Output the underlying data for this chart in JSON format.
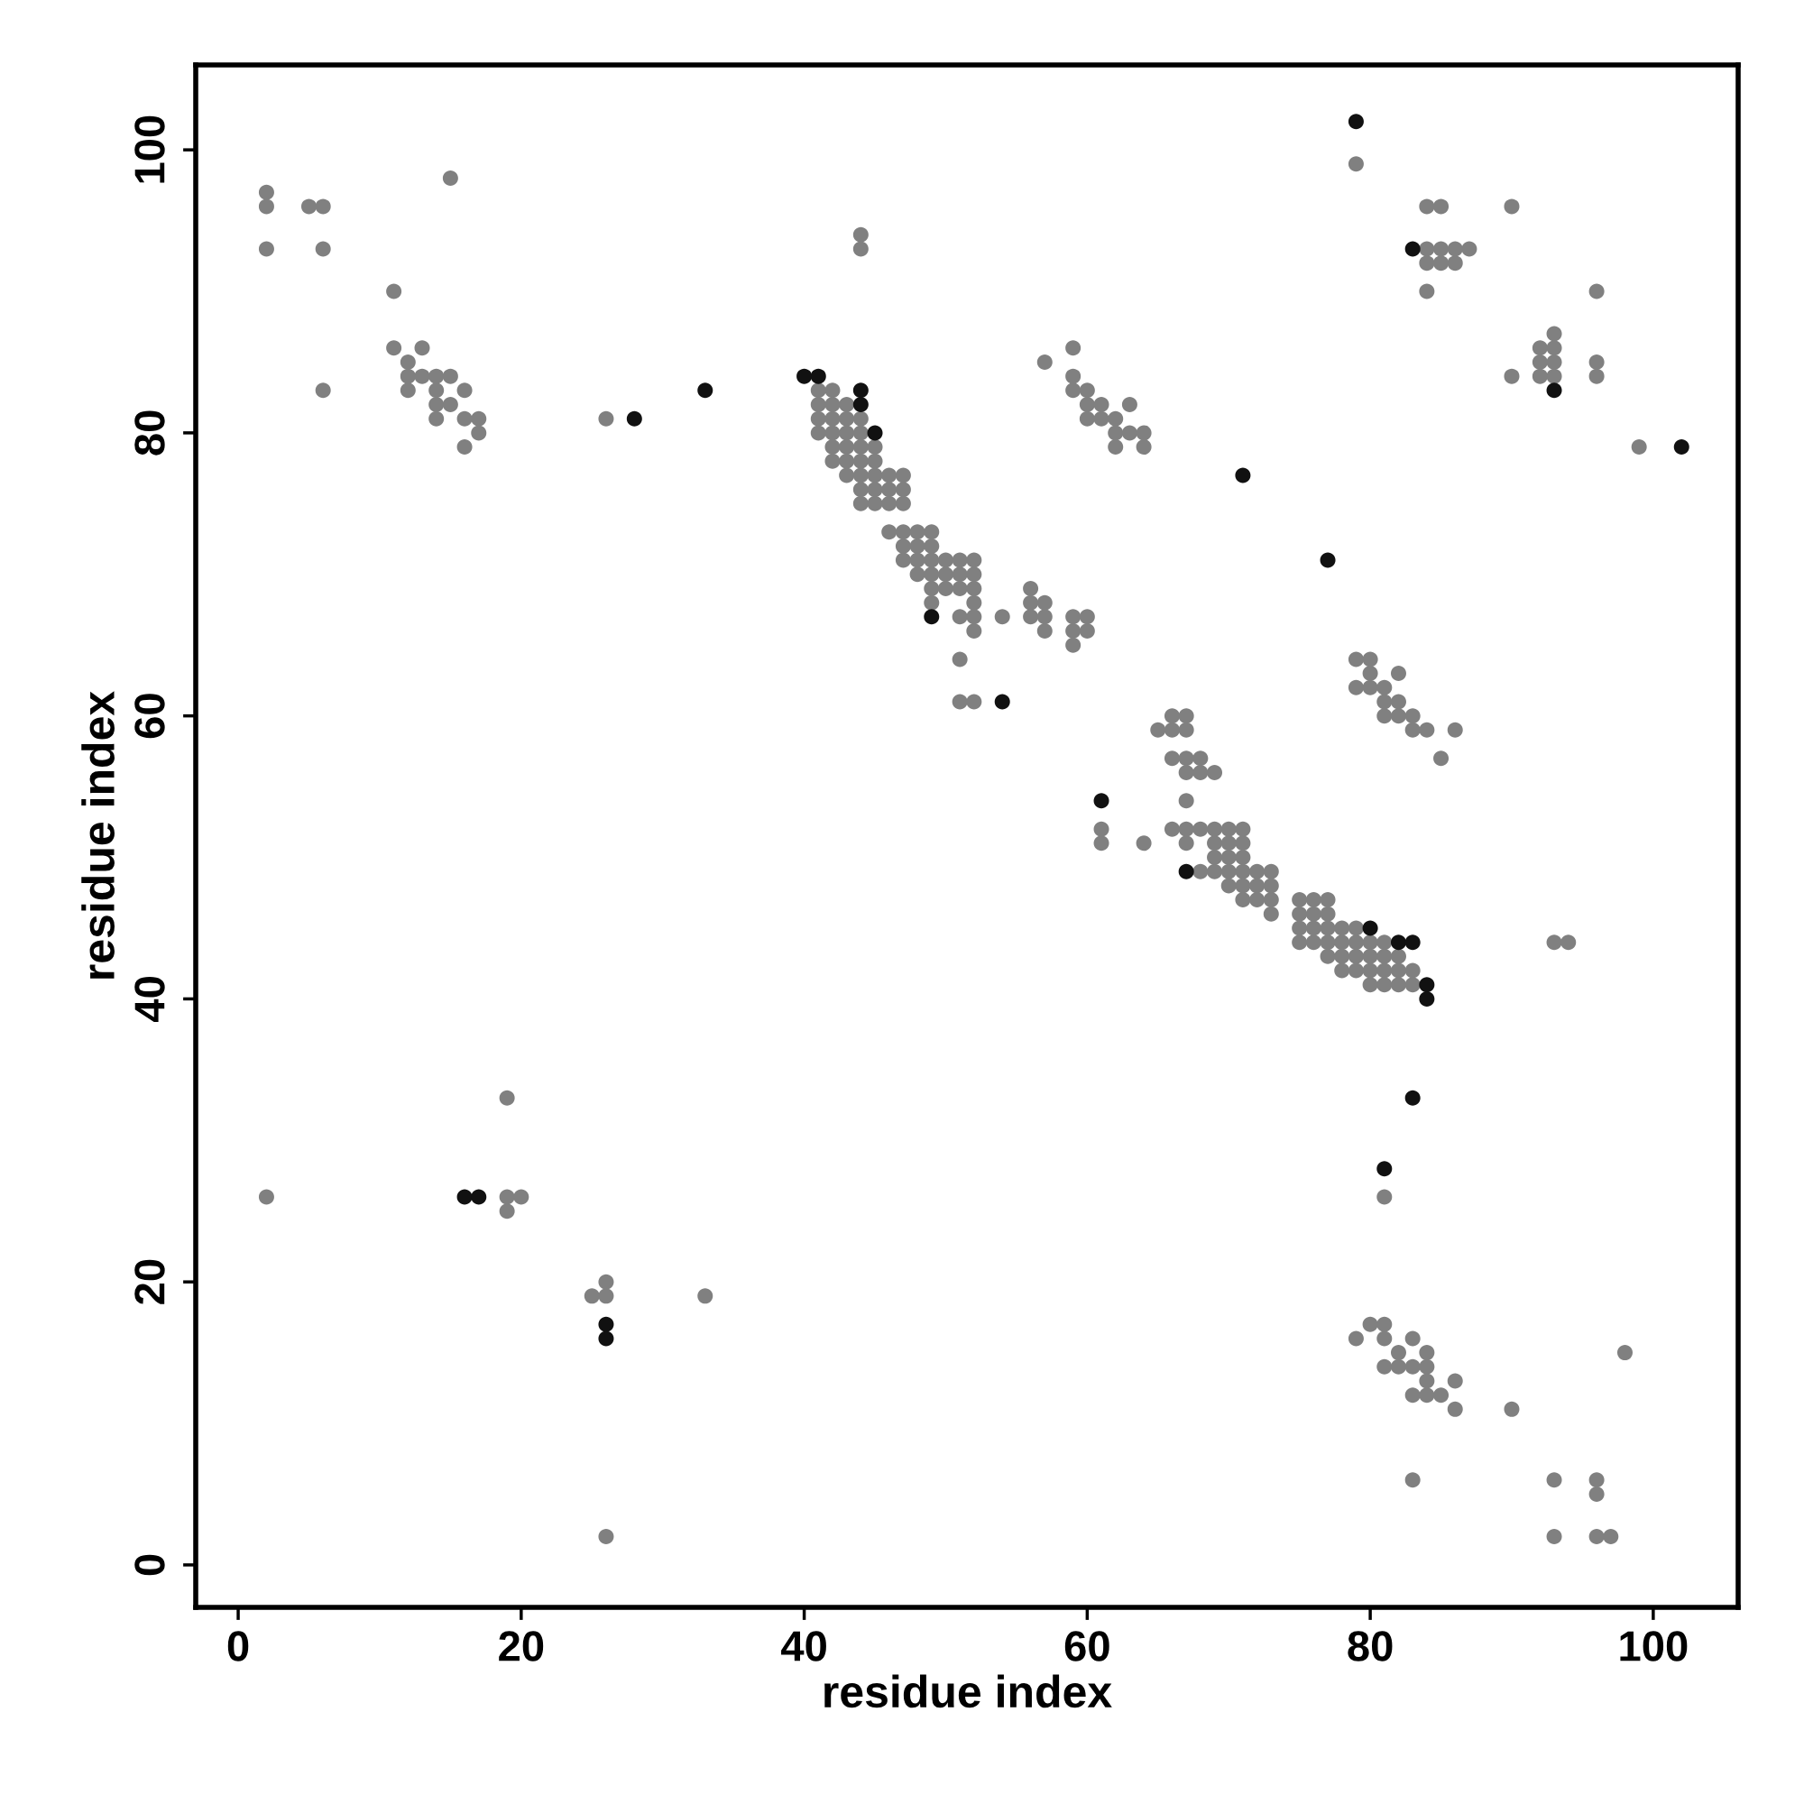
{
  "chart_data": {
    "type": "scatter",
    "xlabel": "residue index",
    "ylabel": "residue index",
    "xlim": [
      -3,
      106
    ],
    "ylim": [
      -3,
      106
    ],
    "xticks": [
      0,
      20,
      40,
      60,
      80,
      100
    ],
    "yticks": [
      0,
      20,
      40,
      60,
      80,
      100
    ],
    "grid": false,
    "marker": "circle",
    "series": [
      {
        "color": "#808080",
        "x": [
          2,
          2,
          5,
          6,
          2,
          6,
          15,
          11,
          6,
          11,
          13,
          12,
          12,
          13,
          14,
          15,
          12,
          14,
          16,
          14,
          15,
          14,
          16,
          17,
          17,
          16,
          26,
          44,
          44,
          41,
          42,
          41,
          42,
          43,
          41,
          42,
          43,
          44,
          41,
          42,
          43,
          44,
          42,
          43,
          44,
          45,
          42,
          43,
          44,
          45,
          43,
          44,
          45,
          46,
          47,
          44,
          45,
          46,
          47,
          44,
          45,
          46,
          47,
          46,
          47,
          48,
          49,
          47,
          48,
          49,
          47,
          48,
          49,
          50,
          51,
          52,
          48,
          49,
          50,
          51,
          52,
          49,
          50,
          51,
          52,
          56,
          49,
          52,
          56,
          57,
          51,
          52,
          54,
          56,
          57,
          59,
          60,
          52,
          57,
          59,
          60,
          59,
          51,
          51,
          52,
          57,
          59,
          59,
          59,
          60,
          60,
          61,
          63,
          60,
          61,
          62,
          62,
          63,
          64,
          62,
          64,
          66,
          67,
          65,
          66,
          67,
          66,
          67,
          68,
          67,
          68,
          69,
          67,
          61,
          61,
          64,
          66,
          67,
          68,
          69,
          70,
          71,
          67,
          69,
          70,
          71,
          69,
          70,
          71,
          68,
          69,
          70,
          71,
          72,
          73,
          70,
          71,
          72,
          73,
          71,
          72,
          73,
          75,
          76,
          77,
          73,
          75,
          76,
          77,
          75,
          76,
          77,
          78,
          79,
          75,
          76,
          77,
          78,
          79,
          80,
          81,
          93,
          94,
          77,
          78,
          79,
          80,
          81,
          82,
          78,
          79,
          80,
          81,
          82,
          83,
          80,
          81,
          82,
          83,
          79,
          80,
          80,
          82,
          79,
          80,
          81,
          81,
          82,
          81,
          82,
          83,
          83,
          84,
          86,
          85,
          79,
          84,
          85,
          90,
          84,
          85,
          86,
          87,
          84,
          85,
          86,
          84,
          96,
          93,
          92,
          93,
          92,
          93,
          96,
          90,
          92,
          93,
          96,
          99,
          2,
          19,
          20,
          19,
          19,
          26,
          25,
          26,
          33,
          26,
          81,
          80,
          81,
          79,
          81,
          83,
          82,
          84,
          81,
          82,
          83,
          84,
          84,
          86,
          83,
          84,
          85,
          86,
          90,
          98,
          83,
          93,
          96,
          96,
          93,
          96,
          97
        ],
        "values": [
          97,
          96,
          96,
          96,
          93,
          93,
          98,
          90,
          83,
          86,
          86,
          85,
          84,
          84,
          84,
          84,
          83,
          83,
          83,
          82,
          82,
          81,
          81,
          81,
          80,
          79,
          81,
          94,
          93,
          83,
          83,
          82,
          82,
          82,
          81,
          81,
          81,
          81,
          80,
          80,
          80,
          80,
          79,
          79,
          79,
          79,
          78,
          78,
          78,
          78,
          77,
          77,
          77,
          77,
          77,
          76,
          76,
          76,
          76,
          75,
          75,
          75,
          75,
          73,
          73,
          73,
          73,
          72,
          72,
          72,
          71,
          71,
          71,
          71,
          71,
          71,
          70,
          70,
          70,
          70,
          70,
          69,
          69,
          69,
          69,
          69,
          68,
          68,
          68,
          68,
          67,
          67,
          67,
          67,
          67,
          67,
          67,
          66,
          66,
          66,
          66,
          65,
          64,
          61,
          61,
          85,
          86,
          84,
          83,
          83,
          82,
          82,
          82,
          81,
          81,
          81,
          80,
          80,
          80,
          79,
          79,
          60,
          60,
          59,
          59,
          59,
          57,
          57,
          57,
          56,
          56,
          56,
          54,
          52,
          51,
          51,
          52,
          52,
          52,
          52,
          52,
          52,
          51,
          51,
          51,
          51,
          50,
          50,
          50,
          49,
          49,
          49,
          49,
          49,
          49,
          48,
          48,
          48,
          48,
          47,
          47,
          47,
          47,
          47,
          47,
          46,
          46,
          46,
          46,
          45,
          45,
          45,
          45,
          45,
          44,
          44,
          44,
          44,
          44,
          44,
          44,
          44,
          44,
          43,
          43,
          43,
          43,
          43,
          43,
          42,
          42,
          42,
          42,
          42,
          42,
          41,
          41,
          41,
          41,
          64,
          64,
          63,
          63,
          62,
          62,
          62,
          61,
          61,
          60,
          60,
          60,
          59,
          59,
          59,
          57,
          99,
          96,
          96,
          96,
          93,
          93,
          93,
          93,
          92,
          92,
          92,
          90,
          90,
          87,
          86,
          86,
          85,
          85,
          85,
          84,
          84,
          84,
          84,
          79,
          26,
          26,
          26,
          25,
          33,
          20,
          19,
          19,
          19,
          2,
          26,
          17,
          17,
          16,
          16,
          16,
          15,
          15,
          14,
          14,
          14,
          14,
          13,
          13,
          12,
          12,
          12,
          11,
          11,
          15,
          6,
          6,
          6,
          5,
          2,
          2,
          2
        ]
      },
      {
        "color": "#111111",
        "x": [
          28,
          33,
          40,
          41,
          44,
          44,
          45,
          49,
          54,
          61,
          67,
          80,
          82,
          83,
          84,
          84,
          83,
          81,
          79,
          83,
          93,
          102,
          71,
          77,
          16,
          17,
          26,
          26
        ],
        "values": [
          81,
          83,
          84,
          84,
          83,
          82,
          80,
          67,
          61,
          54,
          49,
          45,
          44,
          44,
          41,
          40,
          33,
          28,
          102,
          93,
          83,
          79,
          77,
          71,
          26,
          26,
          17,
          16
        ]
      }
    ]
  }
}
